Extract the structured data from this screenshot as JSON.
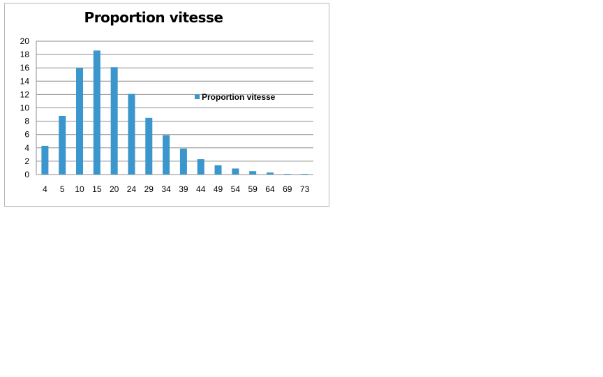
{
  "chart_data": {
    "type": "bar",
    "title": "Proportion vitesse",
    "xlabel": "",
    "ylabel": "",
    "categories": [
      "4",
      "5",
      "10",
      "15",
      "20",
      "24",
      "29",
      "34",
      "39",
      "44",
      "49",
      "54",
      "59",
      "64",
      "69",
      "73"
    ],
    "series": [
      {
        "name": "Proportion vitesse",
        "color": "#3a96cc",
        "values": [
          4.3,
          8.8,
          16.0,
          18.6,
          16.1,
          12.1,
          8.5,
          5.9,
          3.9,
          2.3,
          1.4,
          0.9,
          0.5,
          0.3,
          0.1,
          0.1
        ]
      }
    ],
    "ylim": [
      0,
      20
    ],
    "yticks": [
      "0",
      "2",
      "4",
      "6",
      "8",
      "10",
      "12",
      "14",
      "16",
      "18",
      "20"
    ],
    "grid": true,
    "legend_position": "right"
  }
}
